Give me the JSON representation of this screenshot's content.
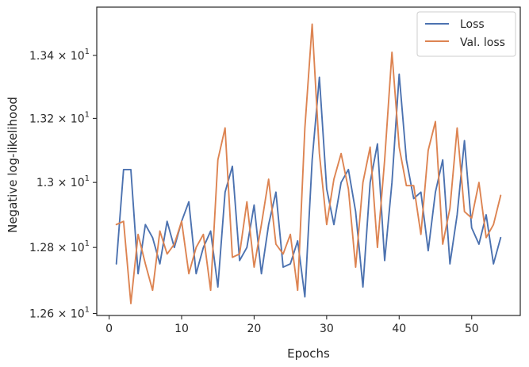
{
  "chart_data": {
    "type": "line",
    "xlabel": "Epochs",
    "ylabel": "Negative log-likelihood",
    "xlim": [
      -1.7,
      56.7
    ],
    "ylim": [
      12.594,
      13.555
    ],
    "yscale": "log",
    "x_ticks": [
      {
        "value": 0,
        "label": "0"
      },
      {
        "value": 10,
        "label": "10"
      },
      {
        "value": 20,
        "label": "20"
      },
      {
        "value": 30,
        "label": "30"
      },
      {
        "value": 40,
        "label": "40"
      },
      {
        "value": 50,
        "label": "50"
      }
    ],
    "y_ticks": [
      {
        "value": 12.6,
        "mantissa": "1.26",
        "sep": " × ",
        "base": "10",
        "exp": "1"
      },
      {
        "value": 12.8,
        "mantissa": "1.28",
        "sep": " × ",
        "base": "10",
        "exp": "1"
      },
      {
        "value": 13.0,
        "mantissa": "1.3",
        "sep": " × ",
        "base": "10",
        "exp": "1"
      },
      {
        "value": 13.2,
        "mantissa": "1.32",
        "sep": " × ",
        "base": "10",
        "exp": "1"
      },
      {
        "value": 13.4,
        "mantissa": "1.34",
        "sep": " × ",
        "base": "10",
        "exp": "1"
      }
    ],
    "grid": false,
    "legend_position": "top-right",
    "x": [
      1,
      2,
      3,
      4,
      5,
      6,
      7,
      8,
      9,
      10,
      11,
      12,
      13,
      14,
      15,
      16,
      17,
      18,
      19,
      20,
      21,
      22,
      23,
      24,
      25,
      26,
      27,
      28,
      29,
      30,
      31,
      32,
      33,
      34,
      35,
      36,
      37,
      38,
      39,
      40,
      41,
      42,
      43,
      44,
      45,
      46,
      47,
      48,
      49,
      50,
      51,
      52,
      53,
      54
    ],
    "series": [
      {
        "name": "Loss",
        "color": "#4c72b0",
        "values": [
          12.75,
          13.04,
          13.04,
          12.72,
          12.87,
          12.83,
          12.75,
          12.88,
          12.8,
          12.88,
          12.94,
          12.72,
          12.8,
          12.85,
          12.68,
          12.97,
          13.05,
          12.76,
          12.8,
          12.93,
          12.72,
          12.87,
          12.97,
          12.74,
          12.75,
          12.82,
          12.65,
          13.07,
          13.33,
          12.98,
          12.87,
          13.0,
          13.04,
          12.91,
          12.68,
          13.0,
          13.12,
          12.76,
          13.0,
          13.34,
          13.07,
          12.95,
          12.97,
          12.79,
          12.97,
          13.07,
          12.75,
          12.9,
          13.13,
          12.86,
          12.81,
          12.9,
          12.75,
          12.83
        ]
      },
      {
        "name": "Val. loss",
        "color": "#dd8452",
        "values": [
          12.87,
          12.88,
          12.63,
          12.84,
          12.75,
          12.67,
          12.85,
          12.78,
          12.81,
          12.88,
          12.72,
          12.8,
          12.84,
          12.67,
          13.07,
          13.17,
          12.77,
          12.78,
          12.94,
          12.74,
          12.87,
          13.01,
          12.81,
          12.78,
          12.84,
          12.67,
          13.17,
          13.5,
          13.09,
          12.87,
          13.01,
          13.09,
          12.98,
          12.74,
          13.0,
          13.11,
          12.8,
          13.07,
          13.41,
          13.11,
          12.99,
          12.99,
          12.84,
          13.1,
          13.19,
          12.81,
          12.92,
          13.17,
          12.91,
          12.89,
          13.0,
          12.83,
          12.87,
          12.96
        ]
      }
    ]
  }
}
